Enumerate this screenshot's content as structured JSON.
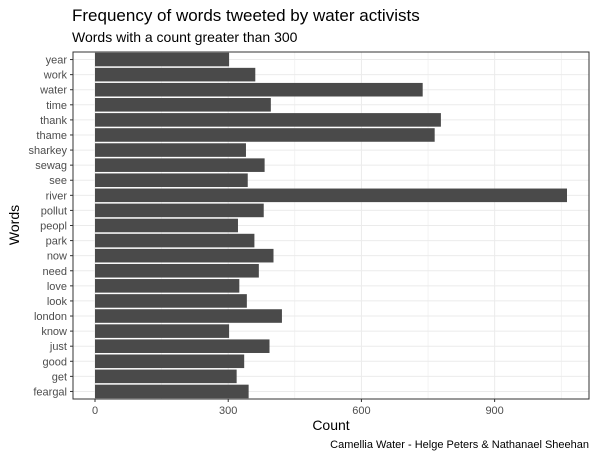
{
  "chart_data": {
    "type": "bar",
    "orientation": "horizontal",
    "title": "Frequency of words tweeted by water activists",
    "subtitle": "Words with a count greater than 300",
    "xlabel": "Count",
    "ylabel": "Words",
    "caption": "Camellia Water - Helge Peters & Nathanael Sheehan",
    "xlim": [
      0,
      1115
    ],
    "xticks": [
      0,
      300,
      600,
      900
    ],
    "grid": true,
    "bar_color": "#4a4a4a",
    "categories": [
      "year",
      "work",
      "water",
      "time",
      "thank",
      "thame",
      "sharkey",
      "sewag",
      "see",
      "river",
      "pollut",
      "peopl",
      "park",
      "now",
      "need",
      "love",
      "look",
      "london",
      "know",
      "just",
      "good",
      "get",
      "feargal"
    ],
    "values": [
      302,
      361,
      738,
      396,
      779,
      765,
      340,
      382,
      344,
      1063,
      380,
      322,
      359,
      402,
      369,
      325,
      342,
      421,
      302,
      393,
      336,
      319,
      346
    ]
  }
}
